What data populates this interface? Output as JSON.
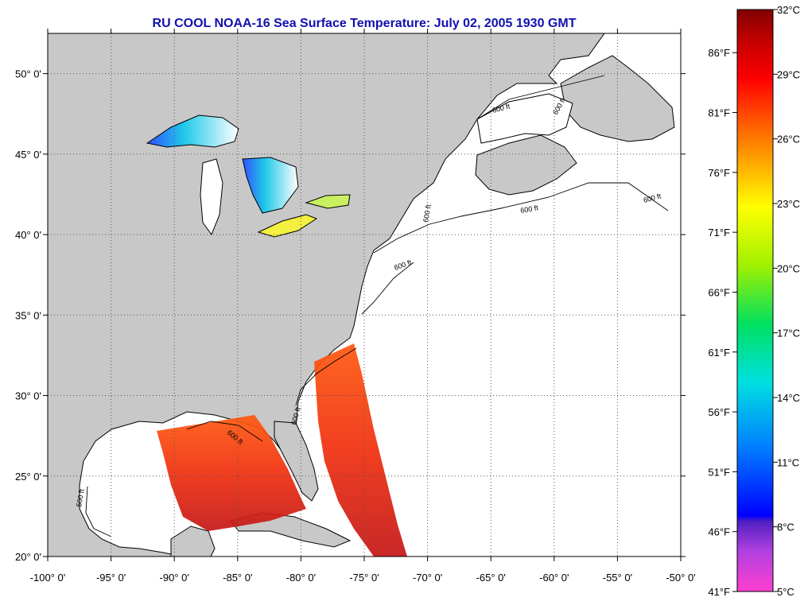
{
  "title": "RU COOL  NOAA-16  Sea Surface Temperature:  July 02, 2005 1930 GMT",
  "map": {
    "lon_ticks": [
      "-100° 0'",
      "-95° 0'",
      "-90° 0'",
      "-85° 0'",
      "-80° 0'",
      "-75° 0'",
      "-70° 0'",
      "-65° 0'",
      "-60° 0'",
      "-55° 0'",
      "-50° 0'"
    ],
    "lat_ticks": [
      "50° 0'",
      "45° 0'",
      "40° 0'",
      "35° 0'",
      "30° 0'",
      "25° 0'",
      "20° 0'"
    ],
    "lon_range": [
      -100,
      -50
    ],
    "lat_range": [
      20,
      52.5
    ],
    "isobath_labels": [
      "600 ft",
      "600 ft",
      "600 ft",
      "600 ft",
      "600 ft",
      "600 ft",
      "600 ft",
      "600 ft",
      "500 ft"
    ],
    "colors": {
      "land": "#c8c8c8",
      "ocean_nodata": "#ffffff",
      "grid": "#555555",
      "title": "#1010b0"
    }
  },
  "colorbar": {
    "celsius_labels": [
      "32°C",
      "29°C",
      "26°C",
      "23°C",
      "20°C",
      "17°C",
      "14°C",
      "11°C",
      "8°C",
      "5°C"
    ],
    "fahrenheit_labels": [
      "86°F",
      "81°F",
      "76°F",
      "71°F",
      "66°F",
      "61°F",
      "56°F",
      "51°F",
      "46°F",
      "41°F"
    ],
    "range_c": [
      5,
      32
    ],
    "stops": [
      "#ff40d0",
      "#b040e0",
      "#5020c0",
      "#0000ff",
      "#0080ff",
      "#00e0e0",
      "#00e060",
      "#a0f000",
      "#ffff00",
      "#ffb000",
      "#ff6000",
      "#ff0000",
      "#c00000",
      "#800000"
    ]
  }
}
